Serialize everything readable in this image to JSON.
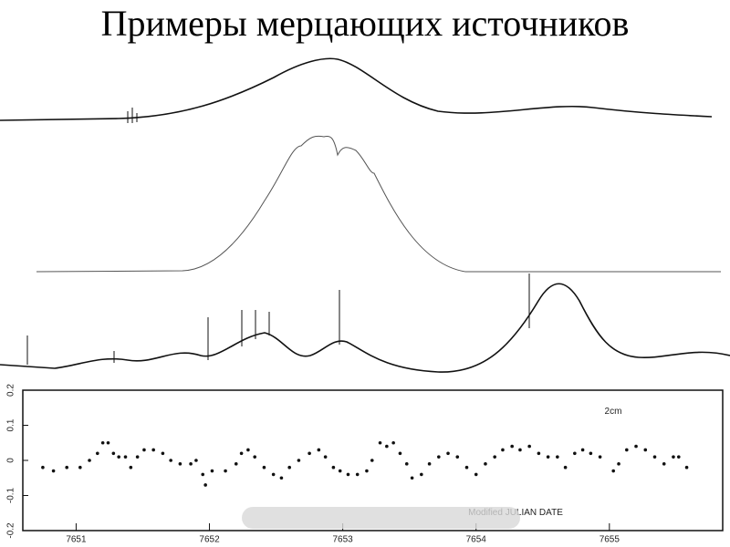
{
  "header": {
    "title": "Примеры мерцающих источников"
  },
  "chart_data": {
    "type": "scatter",
    "xlabel": "Modified JULIAN DATE",
    "annotation": "2cm",
    "color": "#111111",
    "xlim": [
      7650.6,
      7655.85
    ],
    "xticks": [
      7651,
      7652,
      7653,
      7654,
      7655
    ],
    "ylim": [
      -0.2,
      0.2
    ],
    "yticks": [
      0.2,
      0.1,
      0,
      -0.1,
      -0.2
    ],
    "x": [
      7650.75,
      7650.83,
      7650.93,
      7651.03,
      7651.1,
      7651.16,
      7651.2,
      7651.24,
      7651.28,
      7651.32,
      7651.37,
      7651.41,
      7651.46,
      7651.51,
      7651.58,
      7651.65,
      7651.71,
      7651.78,
      7651.86,
      7651.9,
      7651.95,
      7651.97,
      7652.02,
      7652.12,
      7652.2,
      7652.24,
      7652.29,
      7652.34,
      7652.41,
      7652.48,
      7652.54,
      7652.6,
      7652.67,
      7652.75,
      7652.82,
      7652.87,
      7652.93,
      7652.98,
      7653.04,
      7653.11,
      7653.18,
      7653.22,
      7653.28,
      7653.33,
      7653.38,
      7653.43,
      7653.48,
      7653.52,
      7653.59,
      7653.65,
      7653.72,
      7653.79,
      7653.86,
      7653.93,
      7654.0,
      7654.07,
      7654.14,
      7654.2,
      7654.27,
      7654.33,
      7654.4,
      7654.47,
      7654.54,
      7654.61,
      7654.67,
      7654.74,
      7654.8,
      7654.86,
      7654.93,
      7655.03,
      7655.07,
      7655.13,
      7655.2,
      7655.27,
      7655.34,
      7655.41,
      7655.48,
      7655.52,
      7655.58
    ],
    "values": [
      -0.02,
      -0.03,
      -0.02,
      -0.02,
      0,
      0.02,
      0.05,
      0.05,
      0.02,
      0.01,
      0.01,
      -0.02,
      0.01,
      0.03,
      0.03,
      0.02,
      0,
      -0.01,
      -0.01,
      0,
      -0.04,
      -0.07,
      -0.03,
      -0.03,
      -0.01,
      0.02,
      0.03,
      0.01,
      -0.02,
      -0.04,
      -0.05,
      -0.02,
      0,
      0.02,
      0.03,
      0.01,
      -0.02,
      -0.03,
      -0.04,
      -0.04,
      -0.03,
      0,
      0.05,
      0.04,
      0.05,
      0.02,
      -0.01,
      -0.05,
      -0.04,
      -0.01,
      0.01,
      0.02,
      0.01,
      -0.02,
      -0.04,
      -0.01,
      0.01,
      0.03,
      0.04,
      0.03,
      0.04,
      0.02,
      0.01,
      0.01,
      -0.02,
      0.02,
      0.03,
      0.02,
      0.01,
      -0.03,
      -0.01,
      0.03,
      0.04,
      0.03,
      0.01,
      -0.01,
      0.01,
      0.01,
      -0.02
    ]
  }
}
